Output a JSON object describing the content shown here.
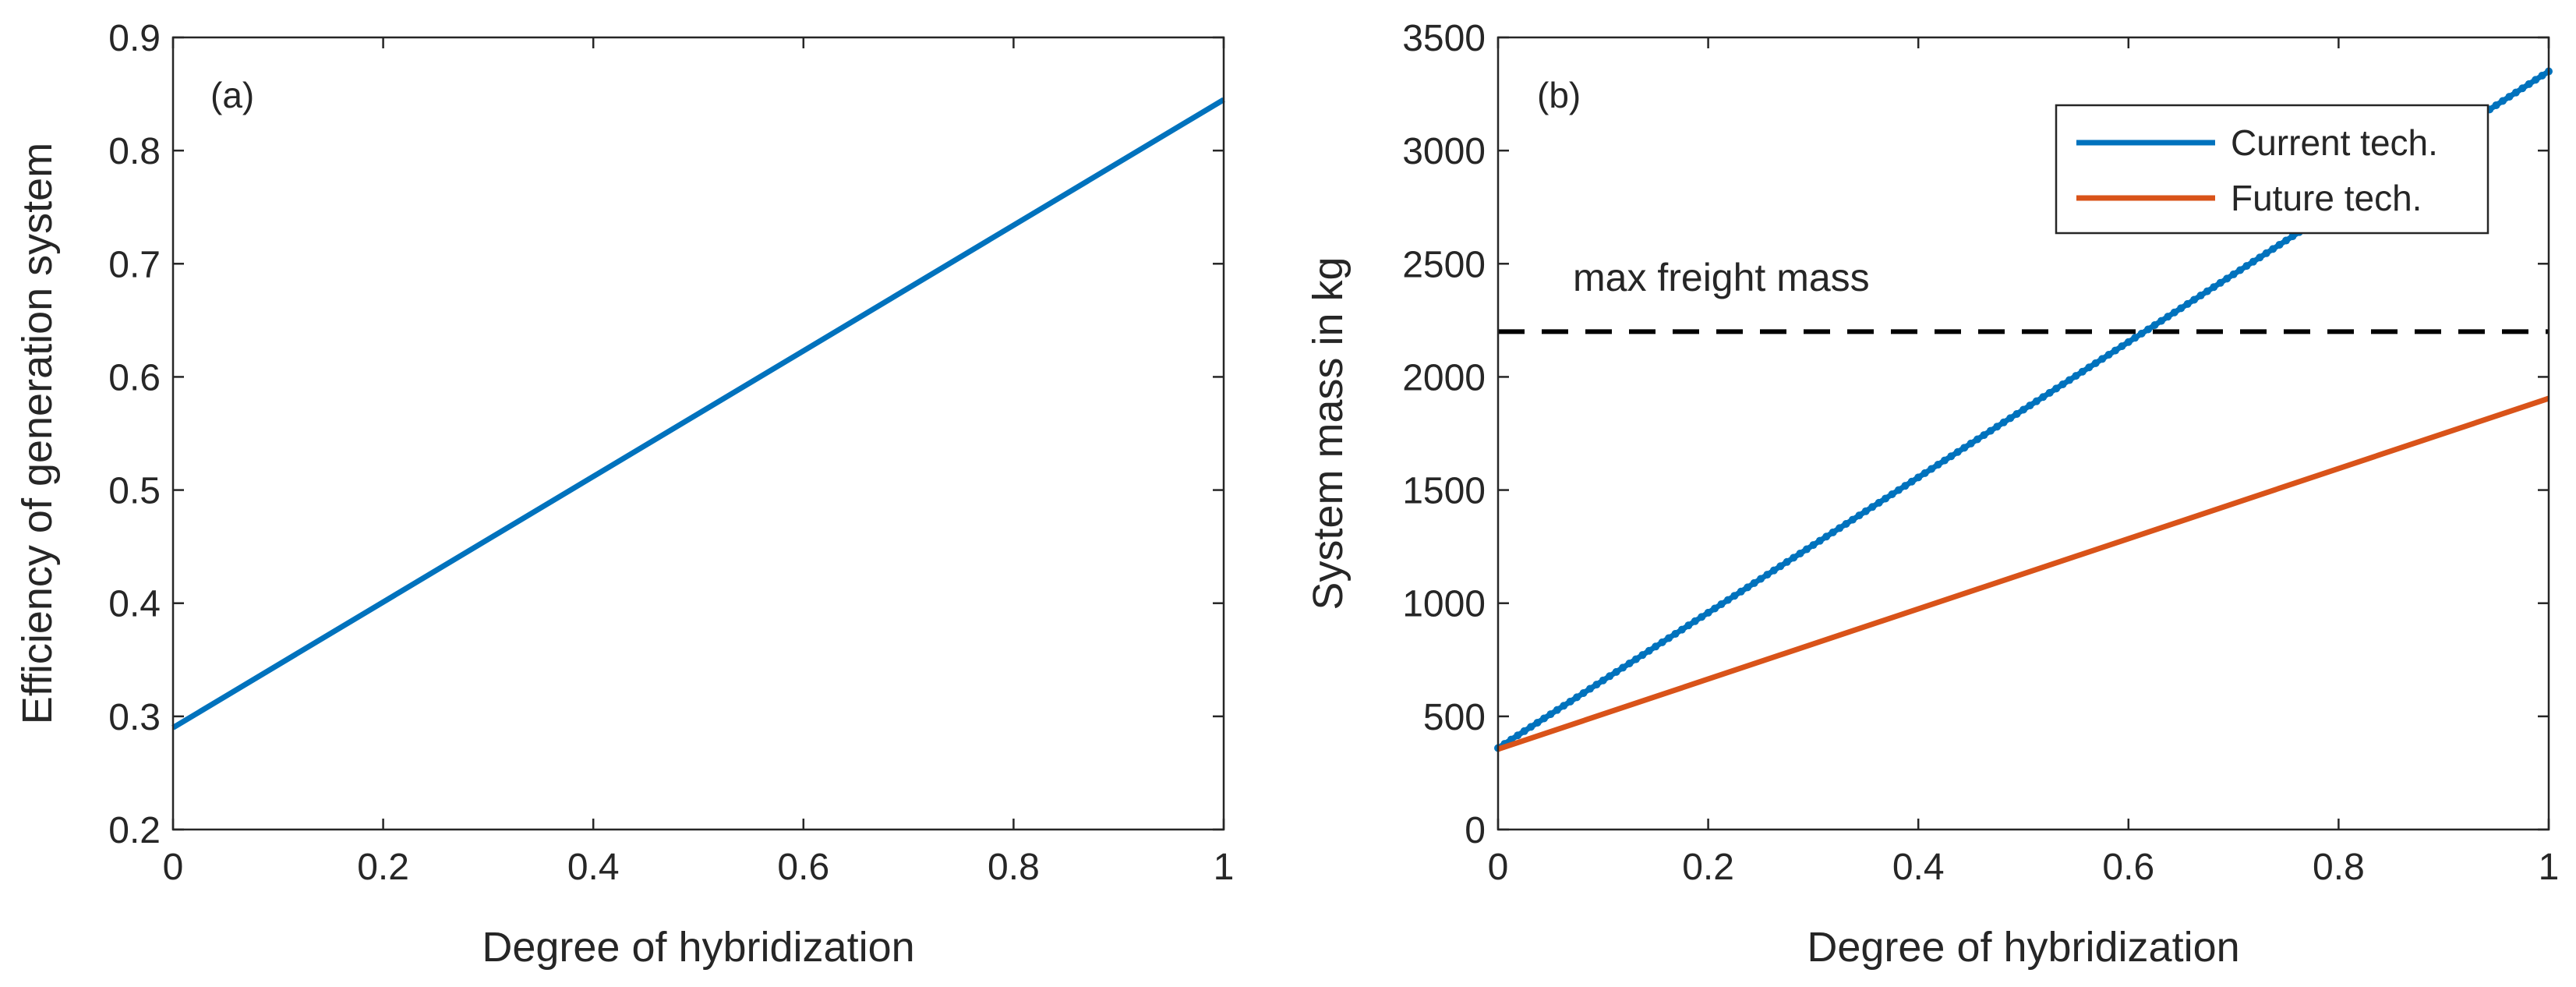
{
  "chart_data": [
    {
      "type": "line",
      "panel_label": "(a)",
      "title": "",
      "xlabel": "Degree of hybridization",
      "ylabel": "Efficiency of generation system",
      "xlim": [
        0,
        1
      ],
      "ylim": [
        0.2,
        0.9
      ],
      "xticks": [
        0,
        0.2,
        0.4,
        0.6,
        0.8,
        1
      ],
      "xtick_labels": [
        "0",
        "0.2",
        "0.4",
        "0.6",
        "0.8",
        "1"
      ],
      "yticks": [
        0.2,
        0.3,
        0.4,
        0.5,
        0.6,
        0.7,
        0.8,
        0.9
      ],
      "ytick_labels": [
        "0.2",
        "0.3",
        "0.4",
        "0.5",
        "0.6",
        "0.7",
        "0.8",
        "0.9"
      ],
      "grid": false,
      "series": [
        {
          "name": "Efficiency",
          "color": "#0072BD",
          "x": [
            0,
            1
          ],
          "y": [
            0.29,
            0.845
          ]
        }
      ]
    },
    {
      "type": "line",
      "panel_label": "(b)",
      "title": "",
      "xlabel": "Degree of hybridization",
      "ylabel": "System mass in kg",
      "xlim": [
        0,
        1
      ],
      "ylim": [
        0,
        3500
      ],
      "xticks": [
        0,
        0.2,
        0.4,
        0.6,
        0.8,
        1
      ],
      "xtick_labels": [
        "0",
        "0.2",
        "0.4",
        "0.6",
        "0.8",
        "1"
      ],
      "yticks": [
        0,
        500,
        1000,
        1500,
        2000,
        2500,
        3000,
        3500
      ],
      "ytick_labels": [
        "0",
        "500",
        "1000",
        "1500",
        "2000",
        "2500",
        "3000",
        "3500"
      ],
      "grid": false,
      "legend_position": "top-right",
      "series": [
        {
          "name": "Current tech.",
          "color": "#0072BD",
          "x": [
            0,
            1
          ],
          "y": [
            360,
            3350
          ],
          "dotted": true
        },
        {
          "name": "Future tech.",
          "color": "#D95319",
          "x": [
            0,
            1
          ],
          "y": [
            355,
            1905
          ]
        }
      ],
      "reference_line": {
        "label": "max freight mass",
        "y": 2200,
        "color": "#000000",
        "style": "dashed"
      }
    }
  ]
}
